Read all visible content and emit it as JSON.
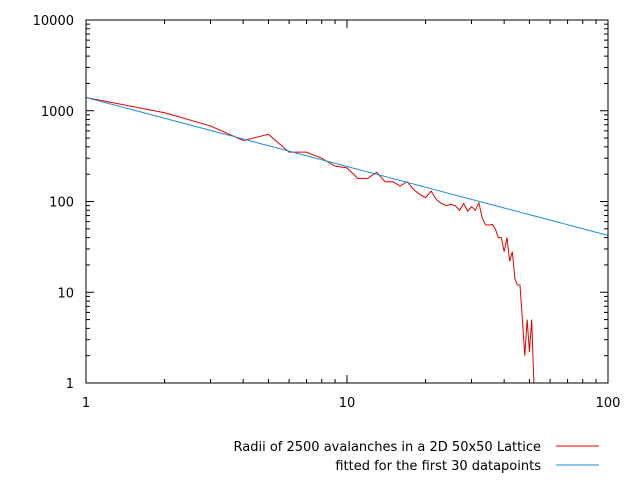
{
  "chart_data": {
    "type": "line",
    "xscale": "log",
    "yscale": "log",
    "xlim": [
      1,
      100
    ],
    "ylim": [
      1,
      10000
    ],
    "x_ticks": [
      "1",
      "10",
      "100"
    ],
    "y_ticks": [
      "1",
      "10",
      "100",
      "1000",
      "10000"
    ],
    "grid": false,
    "legend_position": "bottom-right",
    "series": [
      {
        "name": "Radii of 2500 avalanches in a 2D 50x50 Lattice",
        "color": "#e00000",
        "x": [
          1,
          2,
          3,
          4,
          5,
          6,
          7,
          8,
          9,
          10,
          11,
          12,
          13,
          14,
          15,
          16,
          17,
          18,
          19,
          20,
          21,
          22,
          23,
          24,
          25,
          26,
          27,
          28,
          29,
          30,
          31,
          32,
          33,
          34,
          35,
          36,
          37,
          38,
          39,
          40,
          41,
          42,
          43,
          44,
          45,
          46,
          47,
          48,
          49,
          50,
          51,
          52,
          53,
          54,
          55,
          56
        ],
        "y": [
          1400,
          950,
          680,
          470,
          550,
          350,
          350,
          300,
          245,
          235,
          180,
          180,
          210,
          165,
          165,
          148,
          165,
          135,
          120,
          110,
          130,
          105,
          95,
          90,
          93,
          90,
          80,
          95,
          78,
          88,
          80,
          97,
          65,
          55,
          55,
          56,
          50,
          40,
          40,
          28,
          40,
          22,
          28,
          14,
          12,
          12,
          5,
          2,
          5,
          2.2,
          5,
          1,
          0.9,
          0.9,
          0.9,
          0.9
        ]
      },
      {
        "name": "fitted for the first 30 datapoints",
        "color": "#1a8fd6",
        "fit": {
          "a": 1400,
          "b": -0.76
        }
      }
    ]
  }
}
